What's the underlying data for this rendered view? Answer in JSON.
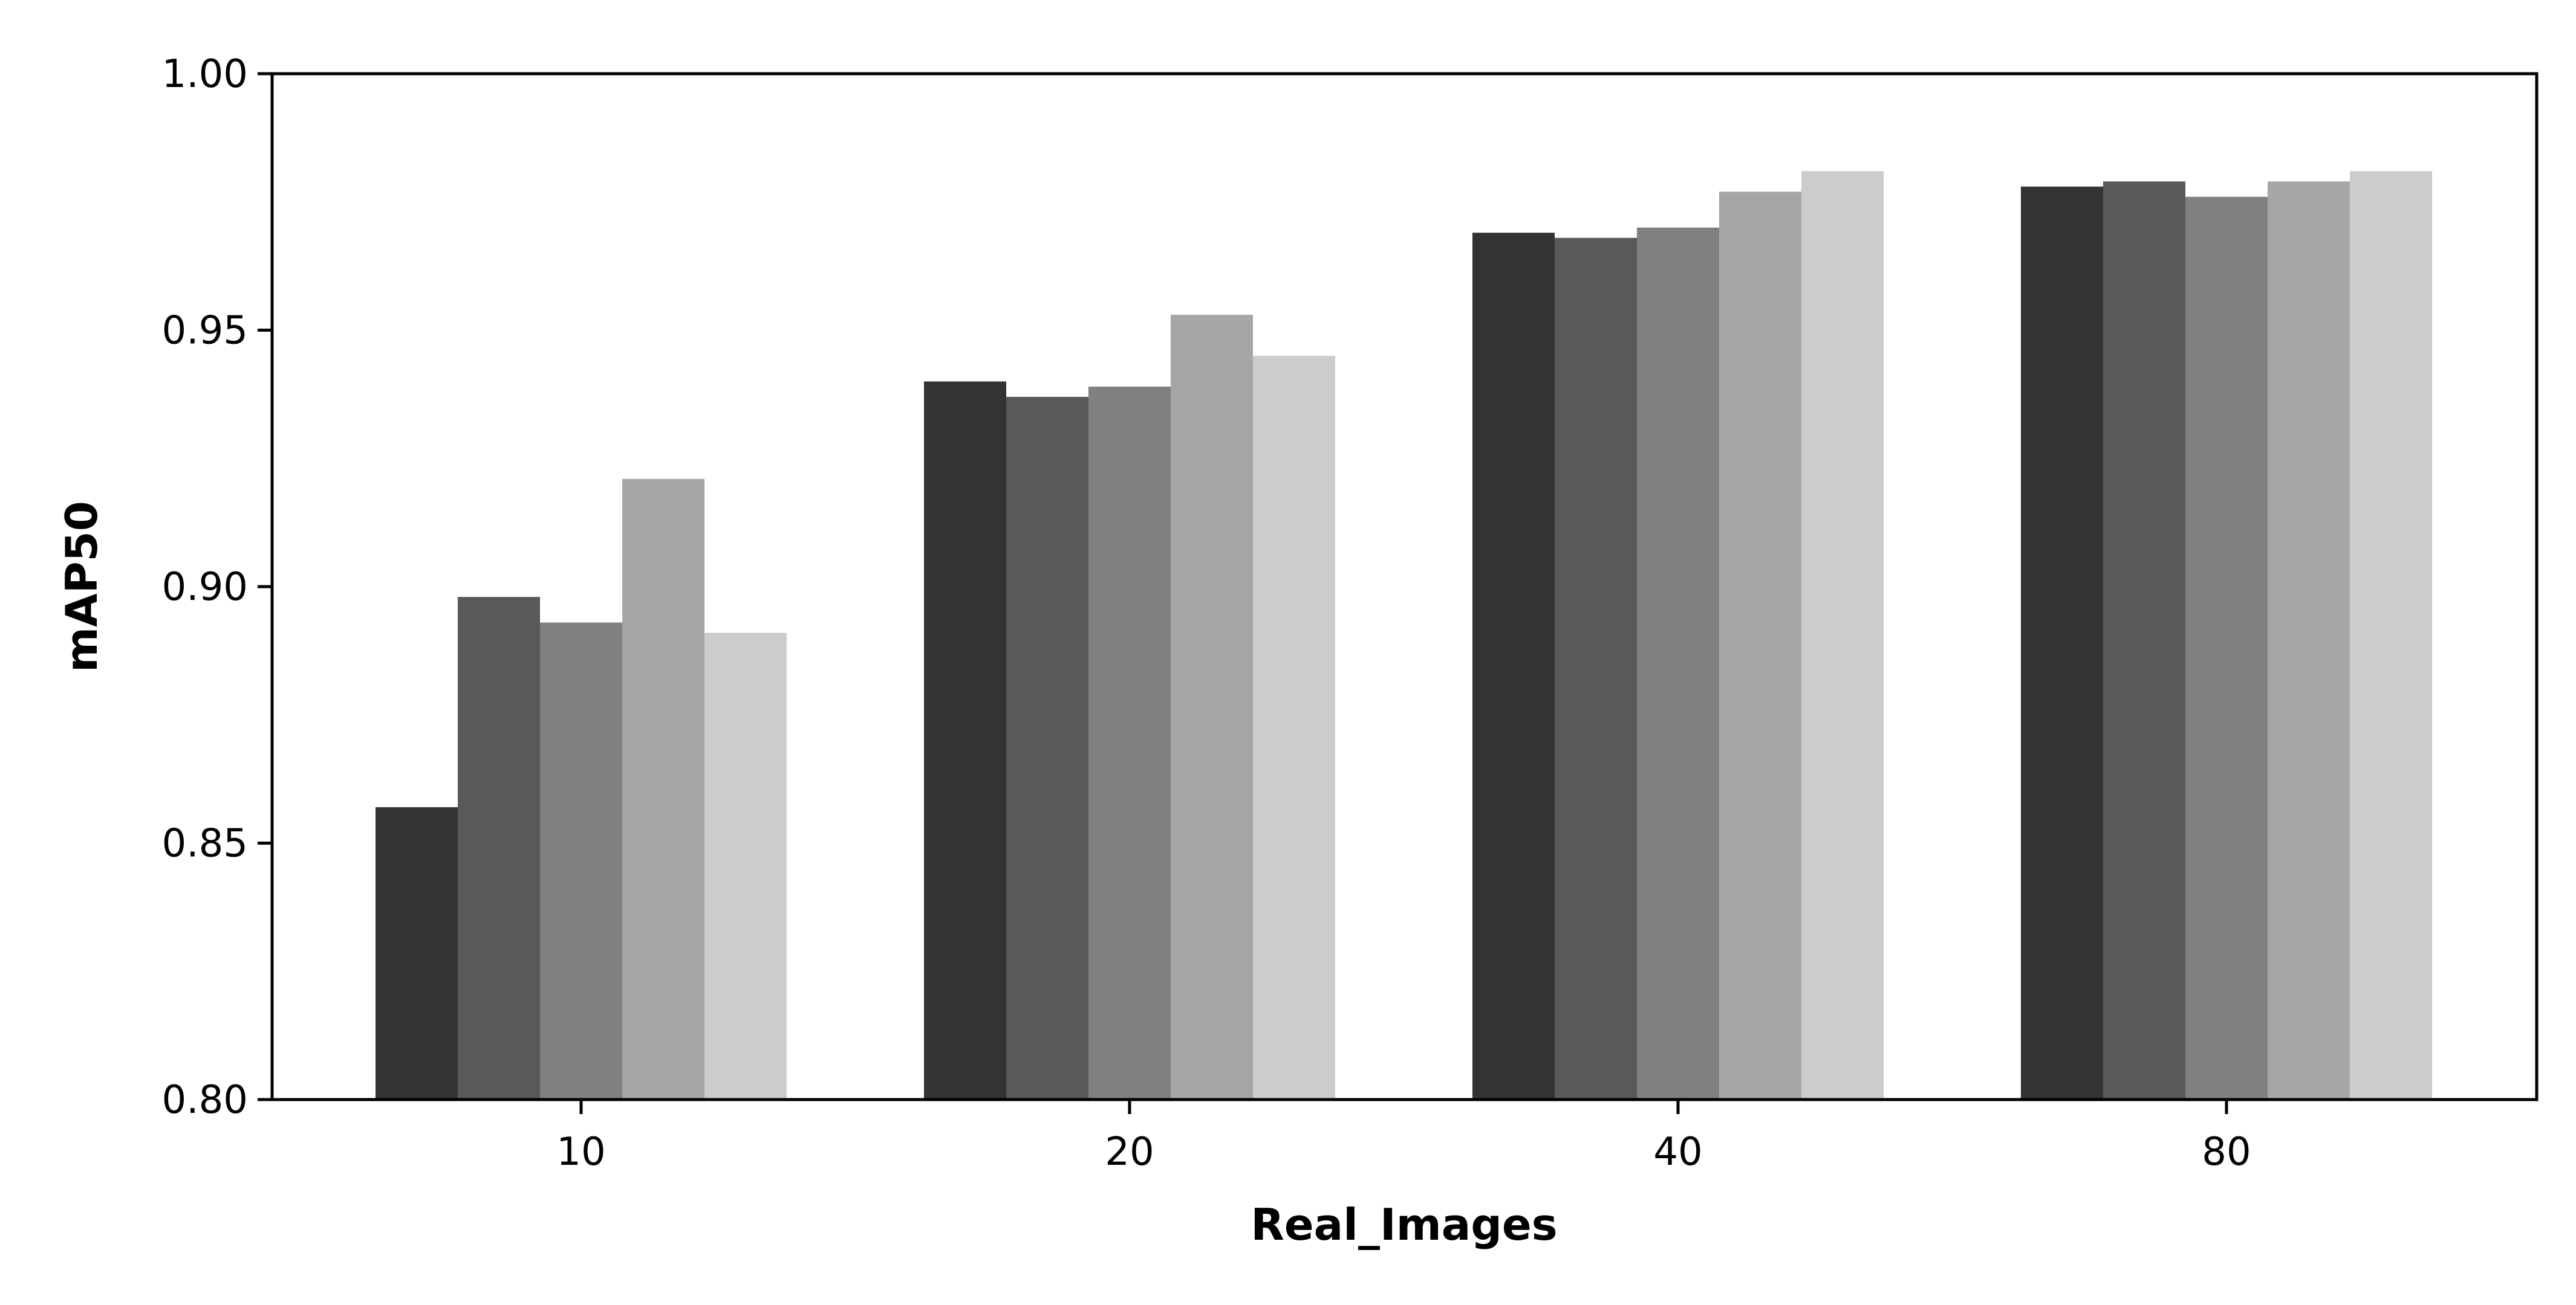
{
  "chart_data": {
    "type": "bar",
    "title": "",
    "xlabel": "Real_Images",
    "ylabel": "mAP50",
    "categories": [
      "10",
      "20",
      "40",
      "80"
    ],
    "ylim": [
      0.8,
      1.0
    ],
    "yticks": [
      "0.80",
      "0.85",
      "0.90",
      "0.95",
      "1.00"
    ],
    "grid": false,
    "legend": "none",
    "series": [
      {
        "color": "#333333",
        "values": [
          0.857,
          0.94,
          0.969,
          0.978
        ]
      },
      {
        "color": "#595959",
        "values": [
          0.898,
          0.937,
          0.968,
          0.979
        ]
      },
      {
        "color": "#808080",
        "values": [
          0.893,
          0.939,
          0.97,
          0.976
        ]
      },
      {
        "color": "#a6a6a6",
        "values": [
          0.921,
          0.953,
          0.977,
          0.979
        ]
      },
      {
        "color": "#cccccc",
        "values": [
          0.891,
          0.945,
          0.981,
          0.981
        ]
      }
    ]
  }
}
